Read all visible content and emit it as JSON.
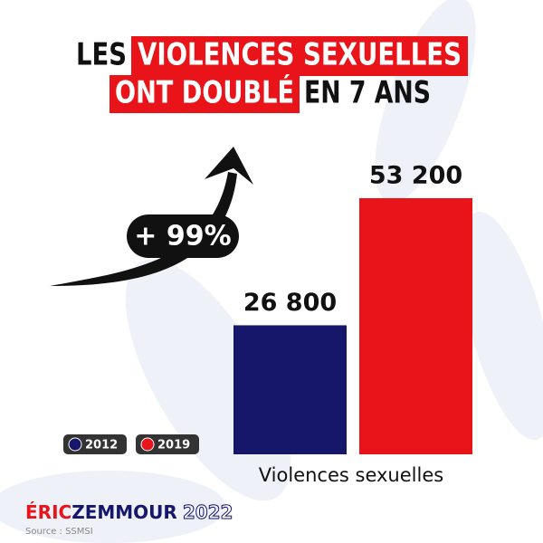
{
  "chart_data": {
    "type": "bar",
    "title": [
      "LES",
      "VIOLENCES SEXUELLES",
      "ONT DOUBLÉ",
      "EN 7 ANS"
    ],
    "annotation": "+ 99%",
    "categories": [
      "Violences sexuelles"
    ],
    "series": [
      {
        "name": "2012",
        "color": "#16166b",
        "values": [
          26800
        ],
        "value_labels": [
          "26 800"
        ]
      },
      {
        "name": "2019",
        "color": "#e8141a",
        "values": [
          53200
        ],
        "value_labels": [
          "53 200"
        ]
      }
    ],
    "brand": [
      "ÉRIC",
      "ZEMMOUR",
      "2022"
    ],
    "source": "Source : SSMSI"
  }
}
